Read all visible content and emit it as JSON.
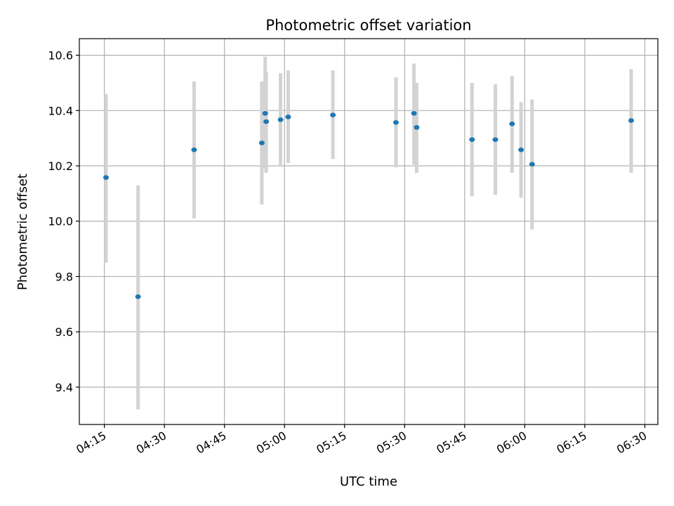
{
  "chart_data": {
    "type": "scatter",
    "title": "Photometric offset variation",
    "xlabel": "UTC time",
    "ylabel": "Photometric offset",
    "x_ticks": [
      "04:15",
      "04:30",
      "04:45",
      "05:00",
      "05:15",
      "05:30",
      "05:45",
      "06:00",
      "06:15",
      "06:30"
    ],
    "y_ticks": [
      "9.4",
      "9.6",
      "9.8",
      "10.0",
      "10.2",
      "10.4",
      "10.6"
    ],
    "xlim": [
      "04:08:45",
      "06:33:15"
    ],
    "ylim": [
      9.265,
      10.66
    ],
    "grid": true,
    "colors": {
      "point": "#1f77b4",
      "errorbar": "#d3d3d3",
      "grid": "#b0b0b0"
    },
    "points": [
      {
        "time": "04:15:25",
        "value": 10.158,
        "low": 9.85,
        "high": 10.46
      },
      {
        "time": "04:23:25",
        "value": 9.727,
        "low": 9.32,
        "high": 10.13
      },
      {
        "time": "04:37:25",
        "value": 10.258,
        "low": 10.01,
        "high": 10.505
      },
      {
        "time": "04:54:20",
        "value": 10.283,
        "low": 10.06,
        "high": 10.505
      },
      {
        "time": "04:55:10",
        "value": 10.39,
        "low": 10.19,
        "high": 10.595
      },
      {
        "time": "04:55:25",
        "value": 10.36,
        "low": 10.175,
        "high": 10.54
      },
      {
        "time": "04:59:00",
        "value": 10.367,
        "low": 10.2,
        "high": 10.535
      },
      {
        "time": "05:00:55",
        "value": 10.377,
        "low": 10.21,
        "high": 10.545
      },
      {
        "time": "05:12:05",
        "value": 10.384,
        "low": 10.225,
        "high": 10.545
      },
      {
        "time": "05:27:50",
        "value": 10.357,
        "low": 10.195,
        "high": 10.52
      },
      {
        "time": "05:32:20",
        "value": 10.39,
        "low": 10.205,
        "high": 10.57
      },
      {
        "time": "05:33:00",
        "value": 10.339,
        "low": 10.175,
        "high": 10.5
      },
      {
        "time": "05:46:50",
        "value": 10.295,
        "low": 10.09,
        "high": 10.5
      },
      {
        "time": "05:52:40",
        "value": 10.295,
        "low": 10.095,
        "high": 10.495
      },
      {
        "time": "05:56:50",
        "value": 10.352,
        "low": 10.175,
        "high": 10.525
      },
      {
        "time": "05:59:05",
        "value": 10.258,
        "low": 10.085,
        "high": 10.43
      },
      {
        "time": "06:01:50",
        "value": 10.206,
        "low": 9.97,
        "high": 10.44
      },
      {
        "time": "06:26:35",
        "value": 10.364,
        "low": 10.175,
        "high": 10.55
      }
    ]
  }
}
